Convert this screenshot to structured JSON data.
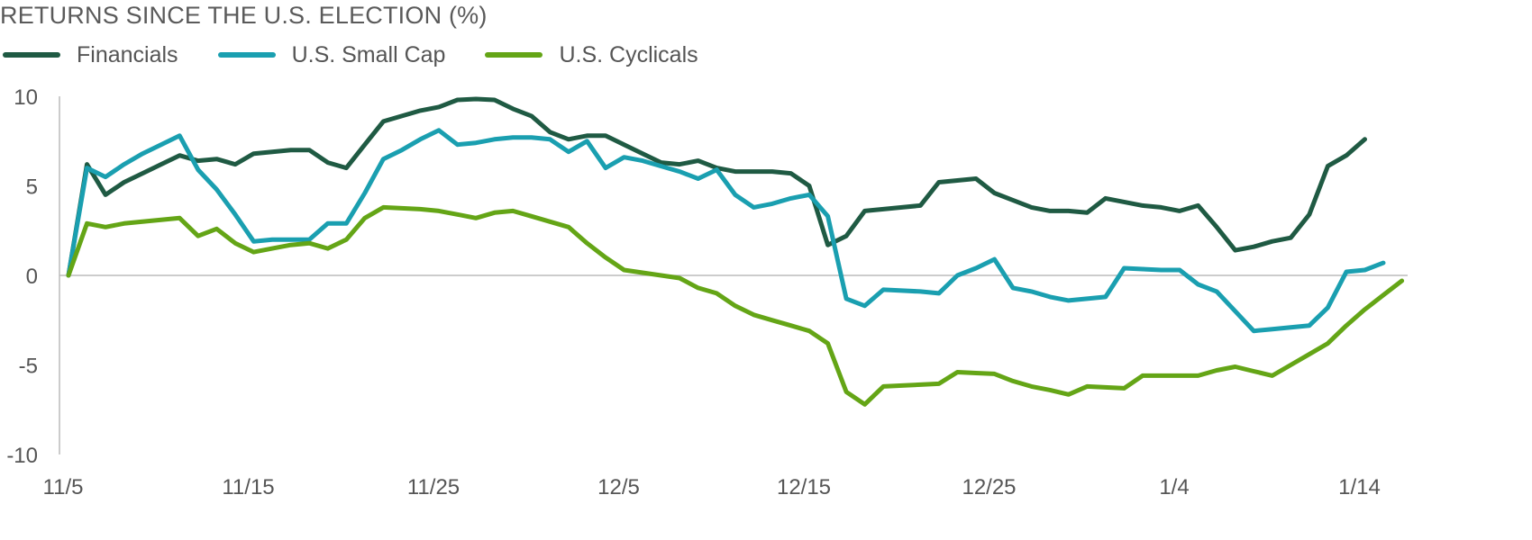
{
  "title": "RETURNS SINCE THE U.S. ELECTION (%)",
  "colors": {
    "financials": "#1f5a43",
    "small_cap": "#1a9fb0",
    "cyclicals": "#64a516",
    "axis": "#bbbbbb",
    "text": "#555555"
  },
  "chart_data": {
    "type": "line",
    "title": "RETURNS SINCE THE U.S. ELECTION (%)",
    "xlabel": "",
    "ylabel": "",
    "ylim": [
      -10,
      10
    ],
    "yticks": [
      10,
      5,
      0,
      -5,
      -10
    ],
    "x_tick_labels": [
      "11/5",
      "11/15",
      "11/25",
      "12/5",
      "12/15",
      "12/25",
      "1/4",
      "1/14"
    ],
    "x_tick_days": [
      0,
      10,
      20,
      30,
      40,
      50,
      60,
      70
    ],
    "xlim_days": [
      0,
      72
    ],
    "grid": false,
    "legend_position": "top-left",
    "series": [
      {
        "name": "Financials",
        "color": "#1f5a43",
        "points": [
          [
            0,
            0
          ],
          [
            1,
            6.2
          ],
          [
            2,
            4.5
          ],
          [
            3,
            5.2
          ],
          [
            4,
            5.7
          ],
          [
            5,
            6.2
          ],
          [
            6,
            6.7
          ],
          [
            7,
            6.4
          ],
          [
            8,
            6.5
          ],
          [
            9,
            6.2
          ],
          [
            10,
            6.8
          ],
          [
            11,
            6.9
          ],
          [
            12,
            7.0
          ],
          [
            13,
            7.0
          ],
          [
            14,
            6.3
          ],
          [
            15,
            6.0
          ],
          [
            16,
            7.3
          ],
          [
            17,
            8.6
          ],
          [
            18,
            8.9
          ],
          [
            19,
            9.2
          ],
          [
            20,
            9.4
          ],
          [
            21,
            9.8
          ],
          [
            22,
            9.85
          ],
          [
            23,
            9.8
          ],
          [
            24,
            9.3
          ],
          [
            25,
            8.9
          ],
          [
            26,
            8.0
          ],
          [
            27,
            7.6
          ],
          [
            28,
            7.8
          ],
          [
            29,
            7.8
          ],
          [
            30,
            7.3
          ],
          [
            31,
            6.8
          ],
          [
            32,
            6.3
          ],
          [
            33,
            6.2
          ],
          [
            34,
            6.4
          ],
          [
            35,
            6.0
          ],
          [
            36,
            5.8
          ],
          [
            37,
            5.8
          ],
          [
            38,
            5.8
          ],
          [
            39,
            5.7
          ],
          [
            40,
            5.0
          ],
          [
            41,
            1.7
          ],
          [
            42,
            2.2
          ],
          [
            43,
            3.6
          ],
          [
            44,
            3.7
          ],
          [
            45,
            3.8
          ],
          [
            46,
            3.9
          ],
          [
            47,
            5.2
          ],
          [
            48,
            5.3
          ],
          [
            49,
            5.4
          ],
          [
            50,
            4.6
          ],
          [
            51,
            4.2
          ],
          [
            52,
            3.8
          ],
          [
            53,
            3.6
          ],
          [
            54,
            3.6
          ],
          [
            55,
            3.5
          ],
          [
            56,
            4.3
          ],
          [
            57,
            4.1
          ],
          [
            58,
            3.9
          ],
          [
            59,
            3.8
          ],
          [
            60,
            3.6
          ],
          [
            61,
            3.9
          ],
          [
            62,
            2.7
          ],
          [
            63,
            1.4
          ],
          [
            64,
            1.6
          ],
          [
            65,
            1.9
          ],
          [
            66,
            2.1
          ],
          [
            67,
            3.4
          ],
          [
            68,
            6.1
          ],
          [
            69,
            6.7
          ],
          [
            70,
            7.6
          ]
        ]
      },
      {
        "name": "U.S. Small Cap",
        "color": "#1a9fb0",
        "points": [
          [
            0,
            0
          ],
          [
            1,
            6.0
          ],
          [
            2,
            5.5
          ],
          [
            3,
            6.2
          ],
          [
            4,
            6.8
          ],
          [
            5,
            7.3
          ],
          [
            6,
            7.8
          ],
          [
            7,
            5.9
          ],
          [
            8,
            4.8
          ],
          [
            9,
            3.4
          ],
          [
            10,
            1.9
          ],
          [
            11,
            2.0
          ],
          [
            12,
            2.0
          ],
          [
            13,
            2.0
          ],
          [
            14,
            2.9
          ],
          [
            15,
            2.9
          ],
          [
            16,
            4.6
          ],
          [
            17,
            6.5
          ],
          [
            18,
            7.0
          ],
          [
            19,
            7.6
          ],
          [
            20,
            8.1
          ],
          [
            21,
            7.3
          ],
          [
            22,
            7.4
          ],
          [
            23,
            7.6
          ],
          [
            24,
            7.7
          ],
          [
            25,
            7.7
          ],
          [
            26,
            7.6
          ],
          [
            27,
            6.9
          ],
          [
            28,
            7.5
          ],
          [
            29,
            6.0
          ],
          [
            30,
            6.6
          ],
          [
            31,
            6.4
          ],
          [
            32,
            6.1
          ],
          [
            33,
            5.8
          ],
          [
            34,
            5.4
          ],
          [
            35,
            5.9
          ],
          [
            36,
            4.5
          ],
          [
            37,
            3.8
          ],
          [
            38,
            4.0
          ],
          [
            39,
            4.3
          ],
          [
            40,
            4.5
          ],
          [
            41,
            3.3
          ],
          [
            42,
            -1.3
          ],
          [
            43,
            -1.7
          ],
          [
            44,
            -0.8
          ],
          [
            45,
            -0.85
          ],
          [
            46,
            -0.9
          ],
          [
            47,
            -1.0
          ],
          [
            48,
            0.0
          ],
          [
            49,
            0.4
          ],
          [
            50,
            0.9
          ],
          [
            51,
            -0.7
          ],
          [
            52,
            -0.9
          ],
          [
            53,
            -1.2
          ],
          [
            54,
            -1.4
          ],
          [
            55,
            -1.3
          ],
          [
            56,
            -1.2
          ],
          [
            57,
            0.4
          ],
          [
            58,
            0.35
          ],
          [
            59,
            0.3
          ],
          [
            60,
            0.3
          ],
          [
            61,
            -0.5
          ],
          [
            62,
            -0.9
          ],
          [
            63,
            -2.0
          ],
          [
            64,
            -3.1
          ],
          [
            65,
            -3.0
          ],
          [
            66,
            -2.9
          ],
          [
            67,
            -2.8
          ],
          [
            68,
            -1.8
          ],
          [
            69,
            0.2
          ],
          [
            70,
            0.3
          ],
          [
            71,
            0.7
          ]
        ]
      },
      {
        "name": "U.S. Cyclicals",
        "color": "#64a516",
        "points": [
          [
            0,
            0
          ],
          [
            1,
            2.9
          ],
          [
            2,
            2.7
          ],
          [
            3,
            2.9
          ],
          [
            4,
            3.0
          ],
          [
            5,
            3.1
          ],
          [
            6,
            3.2
          ],
          [
            7,
            2.2
          ],
          [
            8,
            2.6
          ],
          [
            9,
            1.8
          ],
          [
            10,
            1.3
          ],
          [
            11,
            1.5
          ],
          [
            12,
            1.7
          ],
          [
            13,
            1.8
          ],
          [
            14,
            1.5
          ],
          [
            15,
            2.0
          ],
          [
            16,
            3.2
          ],
          [
            17,
            3.8
          ],
          [
            18,
            3.75
          ],
          [
            19,
            3.7
          ],
          [
            20,
            3.6
          ],
          [
            21,
            3.4
          ],
          [
            22,
            3.2
          ],
          [
            23,
            3.5
          ],
          [
            24,
            3.6
          ],
          [
            25,
            3.3
          ],
          [
            26,
            3.0
          ],
          [
            27,
            2.7
          ],
          [
            28,
            1.8
          ],
          [
            29,
            1.0
          ],
          [
            30,
            0.3
          ],
          [
            31,
            0.15
          ],
          [
            32,
            0.0
          ],
          [
            33,
            -0.15
          ],
          [
            34,
            -0.7
          ],
          [
            35,
            -1.0
          ],
          [
            36,
            -1.7
          ],
          [
            37,
            -2.2
          ],
          [
            38,
            -2.5
          ],
          [
            39,
            -2.8
          ],
          [
            40,
            -3.1
          ],
          [
            41,
            -3.8
          ],
          [
            42,
            -6.5
          ],
          [
            43,
            -7.2
          ],
          [
            44,
            -6.2
          ],
          [
            45,
            -6.15
          ],
          [
            46,
            -6.1
          ],
          [
            47,
            -6.05
          ],
          [
            48,
            -5.4
          ],
          [
            49,
            -5.45
          ],
          [
            50,
            -5.5
          ],
          [
            51,
            -5.9
          ],
          [
            52,
            -6.2
          ],
          [
            53,
            -6.4
          ],
          [
            54,
            -6.65
          ],
          [
            55,
            -6.2
          ],
          [
            56,
            -6.25
          ],
          [
            57,
            -6.3
          ],
          [
            58,
            -5.6
          ],
          [
            59,
            -5.6
          ],
          [
            60,
            -5.6
          ],
          [
            61,
            -5.6
          ],
          [
            62,
            -5.3
          ],
          [
            63,
            -5.1
          ],
          [
            64,
            -5.35
          ],
          [
            65,
            -5.6
          ],
          [
            66,
            -5.0
          ],
          [
            67,
            -4.4
          ],
          [
            68,
            -3.8
          ],
          [
            69,
            -2.8
          ],
          [
            70,
            -1.9
          ],
          [
            71,
            -1.1
          ],
          [
            72,
            -0.3
          ]
        ]
      }
    ]
  }
}
